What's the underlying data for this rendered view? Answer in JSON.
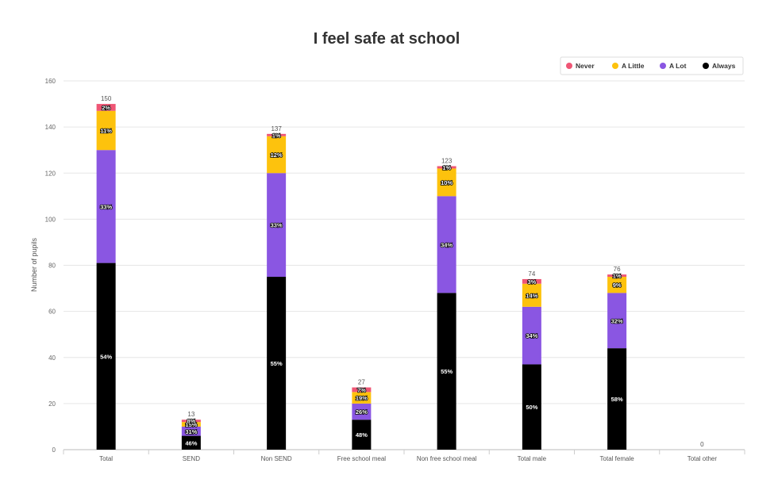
{
  "chart_data": {
    "type": "bar",
    "stacked": true,
    "title": "I feel safe at school",
    "ylabel": "Number of pupils",
    "xlabel": "",
    "ylim": [
      0,
      160
    ],
    "yticks": [
      0,
      20,
      40,
      60,
      80,
      100,
      120,
      140,
      160
    ],
    "grid": true,
    "legend_position": "top-right",
    "categories": [
      "Total",
      "SEND",
      "Non SEND",
      "Free school meal",
      "Non free school meal",
      "Total male",
      "Total female",
      "Total other"
    ],
    "totals": [
      150,
      13,
      137,
      27,
      123,
      74,
      76,
      0
    ],
    "series": [
      {
        "name": "Always",
        "color": "#000000",
        "values": [
          81,
          6,
          75,
          13,
          68,
          37,
          44,
          0
        ],
        "labels": [
          "54%",
          "46%",
          "55%",
          "48%",
          "55%",
          "50%",
          "58%",
          ""
        ]
      },
      {
        "name": "A Lot",
        "color": "#8a56e2",
        "values": [
          49,
          4,
          45,
          7,
          42,
          25,
          24,
          0
        ],
        "labels": [
          "33%",
          "31%",
          "33%",
          "26%",
          "34%",
          "34%",
          "32%",
          ""
        ]
      },
      {
        "name": "A Little",
        "color": "#fdc20d",
        "values": [
          17,
          2,
          16,
          5,
          12,
          10,
          7,
          0
        ],
        "labels": [
          "11%",
          "15%",
          "12%",
          "19%",
          "10%",
          "14%",
          "9%",
          ""
        ]
      },
      {
        "name": "Never",
        "color": "#ef5675",
        "values": [
          3,
          1,
          1,
          2,
          1,
          2,
          1,
          0
        ],
        "labels": [
          "2%",
          "8%",
          "1%",
          "7%",
          "1%",
          "3%",
          "1%",
          ""
        ]
      }
    ],
    "legend_order": [
      "Never",
      "A Little",
      "A Lot",
      "Always"
    ]
  }
}
